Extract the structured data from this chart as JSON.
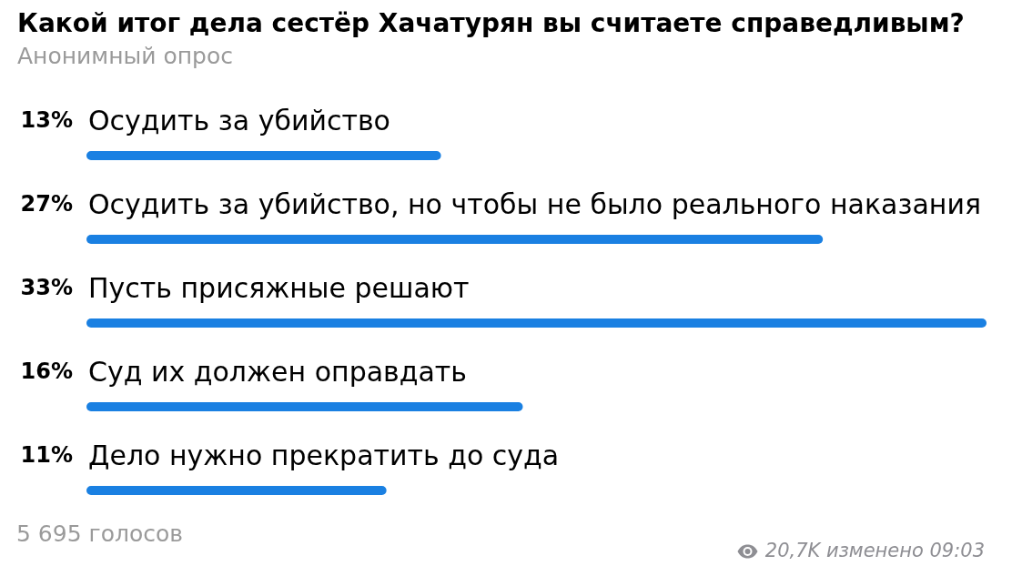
{
  "chart_data": {
    "type": "bar",
    "orientation": "horizontal",
    "title": "Какой итог дела сестёр Хачатурян вы считаете справедливым?",
    "subtitle": "Анонимный опрос",
    "categories": [
      "Осудить за убийство",
      "Осудить за убийство, но чтобы не было реального наказания",
      "Пусть присяжные решают",
      "Суд их должен оправдать",
      "Дело нужно прекратить до суда"
    ],
    "values": [
      13,
      27,
      33,
      16,
      11
    ],
    "color": "#1a80e2",
    "value_labels": [
      "13%",
      "27%",
      "33%",
      "16%",
      "11%"
    ],
    "annotations": [
      "5 695 голосов",
      "20,7K изменено 09:03"
    ]
  }
}
